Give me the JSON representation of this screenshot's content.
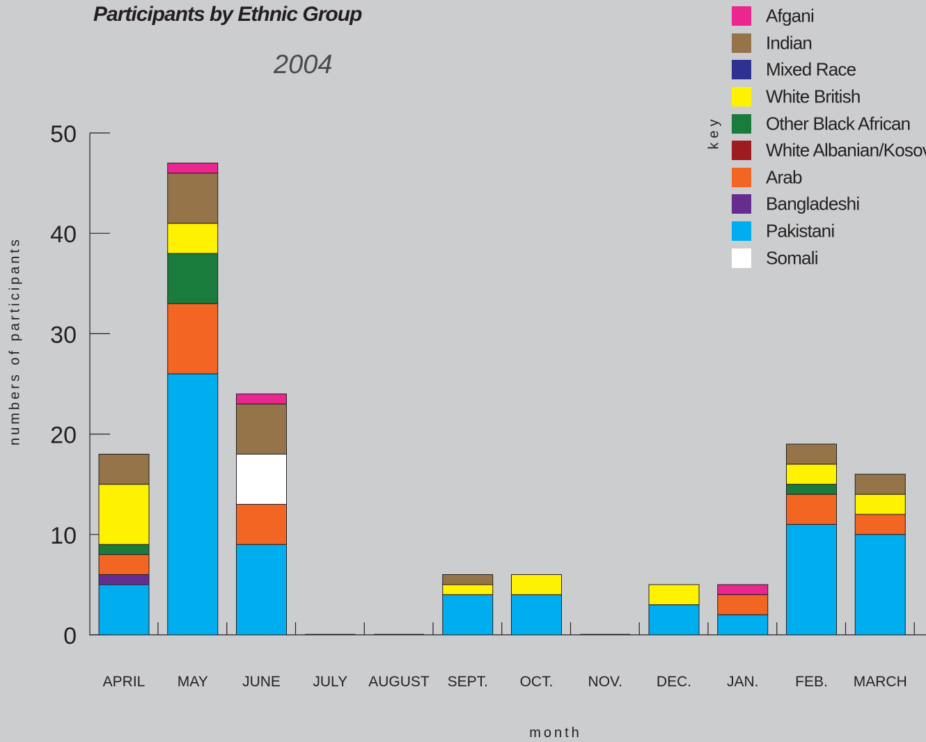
{
  "chart_data": {
    "type": "bar",
    "stacked": true,
    "title": "Participants by Ethnic Group",
    "subtitle": "2004",
    "xlabel": "month",
    "ylabel": "numbers of participants",
    "ylim": [
      0,
      50
    ],
    "yticks": [
      0,
      10,
      20,
      30,
      40,
      50
    ],
    "grid": false,
    "legend_title": "key",
    "legend_position": "top-right",
    "categories": [
      "APRIL",
      "MAY",
      "JUNE",
      "JULY",
      "AUGUST",
      "SEPT.",
      "OCT.",
      "NOV.",
      "DEC.",
      "JAN.",
      "FEB.",
      "MARCH"
    ],
    "series": [
      {
        "name": "Pakistani",
        "color": "#00aeef",
        "values": [
          5,
          26,
          9,
          0,
          0,
          4,
          4,
          0,
          3,
          2,
          11,
          10
        ]
      },
      {
        "name": "Bangladeshi",
        "color": "#662d91",
        "values": [
          1,
          0,
          0,
          0,
          0,
          0,
          0,
          0,
          0,
          0,
          0,
          0
        ]
      },
      {
        "name": "Arab",
        "color": "#f26522",
        "values": [
          2,
          7,
          4,
          0,
          0,
          0,
          0,
          0,
          0,
          2,
          3,
          2
        ]
      },
      {
        "name": "White Albanian/Kosovan",
        "color": "#9e1b20",
        "values": [
          0,
          0,
          0,
          0,
          0,
          0,
          0,
          0,
          0,
          0,
          0,
          0
        ]
      },
      {
        "name": "Other Black African",
        "color": "#197b3c",
        "values": [
          1,
          5,
          0,
          0,
          0,
          0,
          0,
          0,
          0,
          0,
          1,
          0
        ]
      },
      {
        "name": "Somali",
        "color": "#ffffff",
        "values": [
          0,
          0,
          5,
          0,
          0,
          0,
          0,
          0,
          0,
          0,
          0,
          0
        ]
      },
      {
        "name": "White British",
        "color": "#fff200",
        "values": [
          6,
          3,
          0,
          0,
          0,
          1,
          2,
          0,
          2,
          0,
          2,
          2
        ]
      },
      {
        "name": "Mixed Race",
        "color": "#2e3192",
        "values": [
          0,
          0,
          0,
          0,
          0,
          0,
          0,
          0,
          0,
          0,
          0,
          0
        ]
      },
      {
        "name": "Indian",
        "color": "#957449",
        "values": [
          3,
          5,
          5,
          0,
          0,
          1,
          0,
          0,
          0,
          0,
          2,
          2
        ]
      },
      {
        "name": "Afgani",
        "color": "#ec268f",
        "values": [
          0,
          1,
          1,
          0,
          0,
          0,
          0,
          0,
          0,
          1,
          0,
          0
        ]
      }
    ],
    "legend_order": [
      "Afgani",
      "Indian",
      "Mixed Race",
      "White British",
      "Other Black African",
      "White Albanian/Kosovan",
      "Arab",
      "Bangladeshi",
      "Pakistani",
      "Somali"
    ]
  }
}
